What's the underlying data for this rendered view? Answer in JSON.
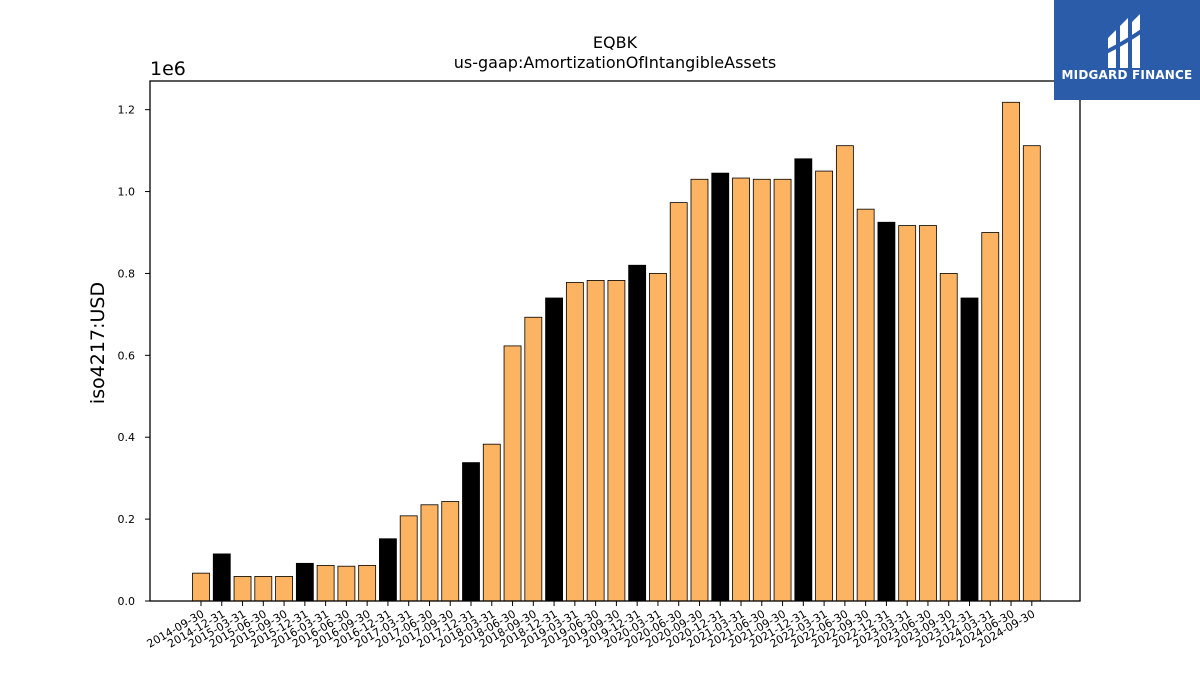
{
  "chart_data": {
    "type": "bar",
    "title": "EQBK",
    "subtitle": "us-gaap:AmortizationOfIntangibleAssets",
    "ylabel": "iso4217:USD",
    "xlabel": "",
    "scale_label": "1e6",
    "ylim": [
      0,
      1.27
    ],
    "yticks": [
      "0.0",
      "0.2",
      "0.4",
      "0.6",
      "0.8",
      "1.0",
      "1.2"
    ],
    "categories": [
      "2014-09-30",
      "2014-12-31",
      "2015-03-31",
      "2015-06-30",
      "2015-09-30",
      "2015-12-31",
      "2016-03-31",
      "2016-06-30",
      "2016-09-30",
      "2016-12-31",
      "2017-03-31",
      "2017-06-30",
      "2017-09-30",
      "2017-12-31",
      "2018-03-31",
      "2018-06-30",
      "2018-09-30",
      "2018-12-31",
      "2019-03-31",
      "2019-06-30",
      "2019-09-30",
      "2019-12-31",
      "2020-03-31",
      "2020-06-30",
      "2020-09-30",
      "2020-12-31",
      "2021-03-31",
      "2021-06-30",
      "2021-09-30",
      "2021-12-31",
      "2022-03-31",
      "2022-06-30",
      "2022-09-30",
      "2022-12-31",
      "2023-03-31",
      "2023-06-30",
      "2023-09-30",
      "2023-12-31",
      "2024-03-31",
      "2024-06-30",
      "2024-09-30"
    ],
    "values": [
      0.068,
      0.115,
      0.06,
      0.06,
      0.06,
      0.092,
      0.087,
      0.085,
      0.087,
      0.152,
      0.208,
      0.235,
      0.243,
      0.338,
      0.383,
      0.623,
      0.693,
      0.74,
      0.778,
      0.783,
      0.783,
      0.82,
      0.8,
      0.973,
      1.03,
      1.045,
      1.033,
      1.03,
      1.03,
      1.08,
      1.05,
      1.112,
      0.957,
      0.925,
      0.917,
      0.917,
      0.8,
      0.74,
      0.9,
      1.218,
      1.112
    ],
    "colors": {
      "quarter": "#fdb462",
      "year_end": "#000000",
      "edge": "#000000"
    },
    "year_end_pattern": "-12-31"
  },
  "logo": {
    "text": "MIDGARD FINANCE",
    "icon": "midgard-logo-icon"
  }
}
